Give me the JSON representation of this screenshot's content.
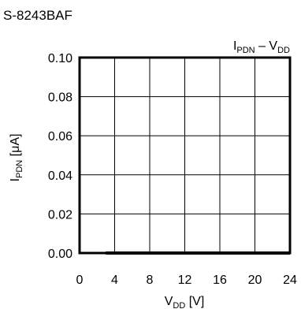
{
  "figure": {
    "part_number": "S-8243BAF",
    "chart_title": {
      "main": "I",
      "sub1": "PDN",
      "dash": " – V",
      "sub2": "DD"
    },
    "ylabel": {
      "main": "I",
      "sub": "PDN",
      "unit": " [μA]"
    },
    "xlabel": {
      "main": "V",
      "sub": "DD",
      "unit": " [V]"
    }
  },
  "chart_data": {
    "type": "line",
    "title": "IPDN – VDD",
    "xlabel": "VDD [V]",
    "ylabel": "IPDN [μA]",
    "xlim": [
      0,
      24
    ],
    "ylim": [
      0,
      0.1
    ],
    "x_ticks": [
      0,
      4,
      8,
      12,
      16,
      20,
      24
    ],
    "x_tick_labels": [
      "0",
      "4",
      "8",
      "12",
      "16",
      "20",
      "24"
    ],
    "y_ticks": [
      0.0,
      0.02,
      0.04,
      0.06,
      0.08,
      0.1
    ],
    "y_tick_labels": [
      "0.00",
      "0.02",
      "0.04",
      "0.06",
      "0.08",
      "0.10"
    ],
    "grid": true,
    "series": [
      {
        "x": [
          3,
          6,
          9,
          12,
          15,
          18,
          21,
          24
        ],
        "y": [
          0,
          0,
          0,
          0,
          0,
          0,
          0,
          0
        ]
      }
    ]
  }
}
